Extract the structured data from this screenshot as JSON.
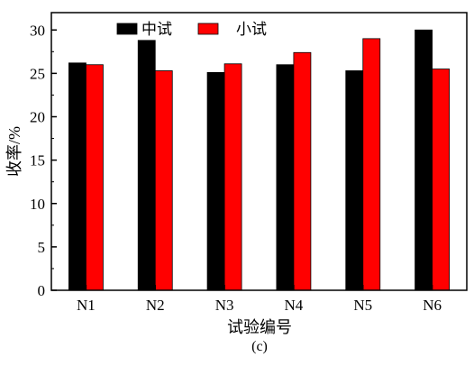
{
  "chart_data": {
    "type": "bar",
    "categories": [
      "N1",
      "N2",
      "N3",
      "N4",
      "N5",
      "N6"
    ],
    "series": [
      {
        "name": "中试",
        "color": "#000000",
        "values": [
          26.2,
          28.8,
          25.1,
          26.0,
          25.3,
          30.0
        ]
      },
      {
        "name": "小试",
        "color": "#ff0000",
        "values": [
          26.0,
          25.3,
          26.1,
          27.4,
          29.0,
          25.5
        ]
      }
    ],
    "xlabel": "试验编号",
    "ylabel": "收率/%",
    "ylim": [
      0,
      32
    ],
    "yticks": [
      0,
      5,
      10,
      15,
      20,
      25,
      30
    ],
    "grid": false,
    "legend_position": "top-center",
    "caption": "(c)"
  }
}
